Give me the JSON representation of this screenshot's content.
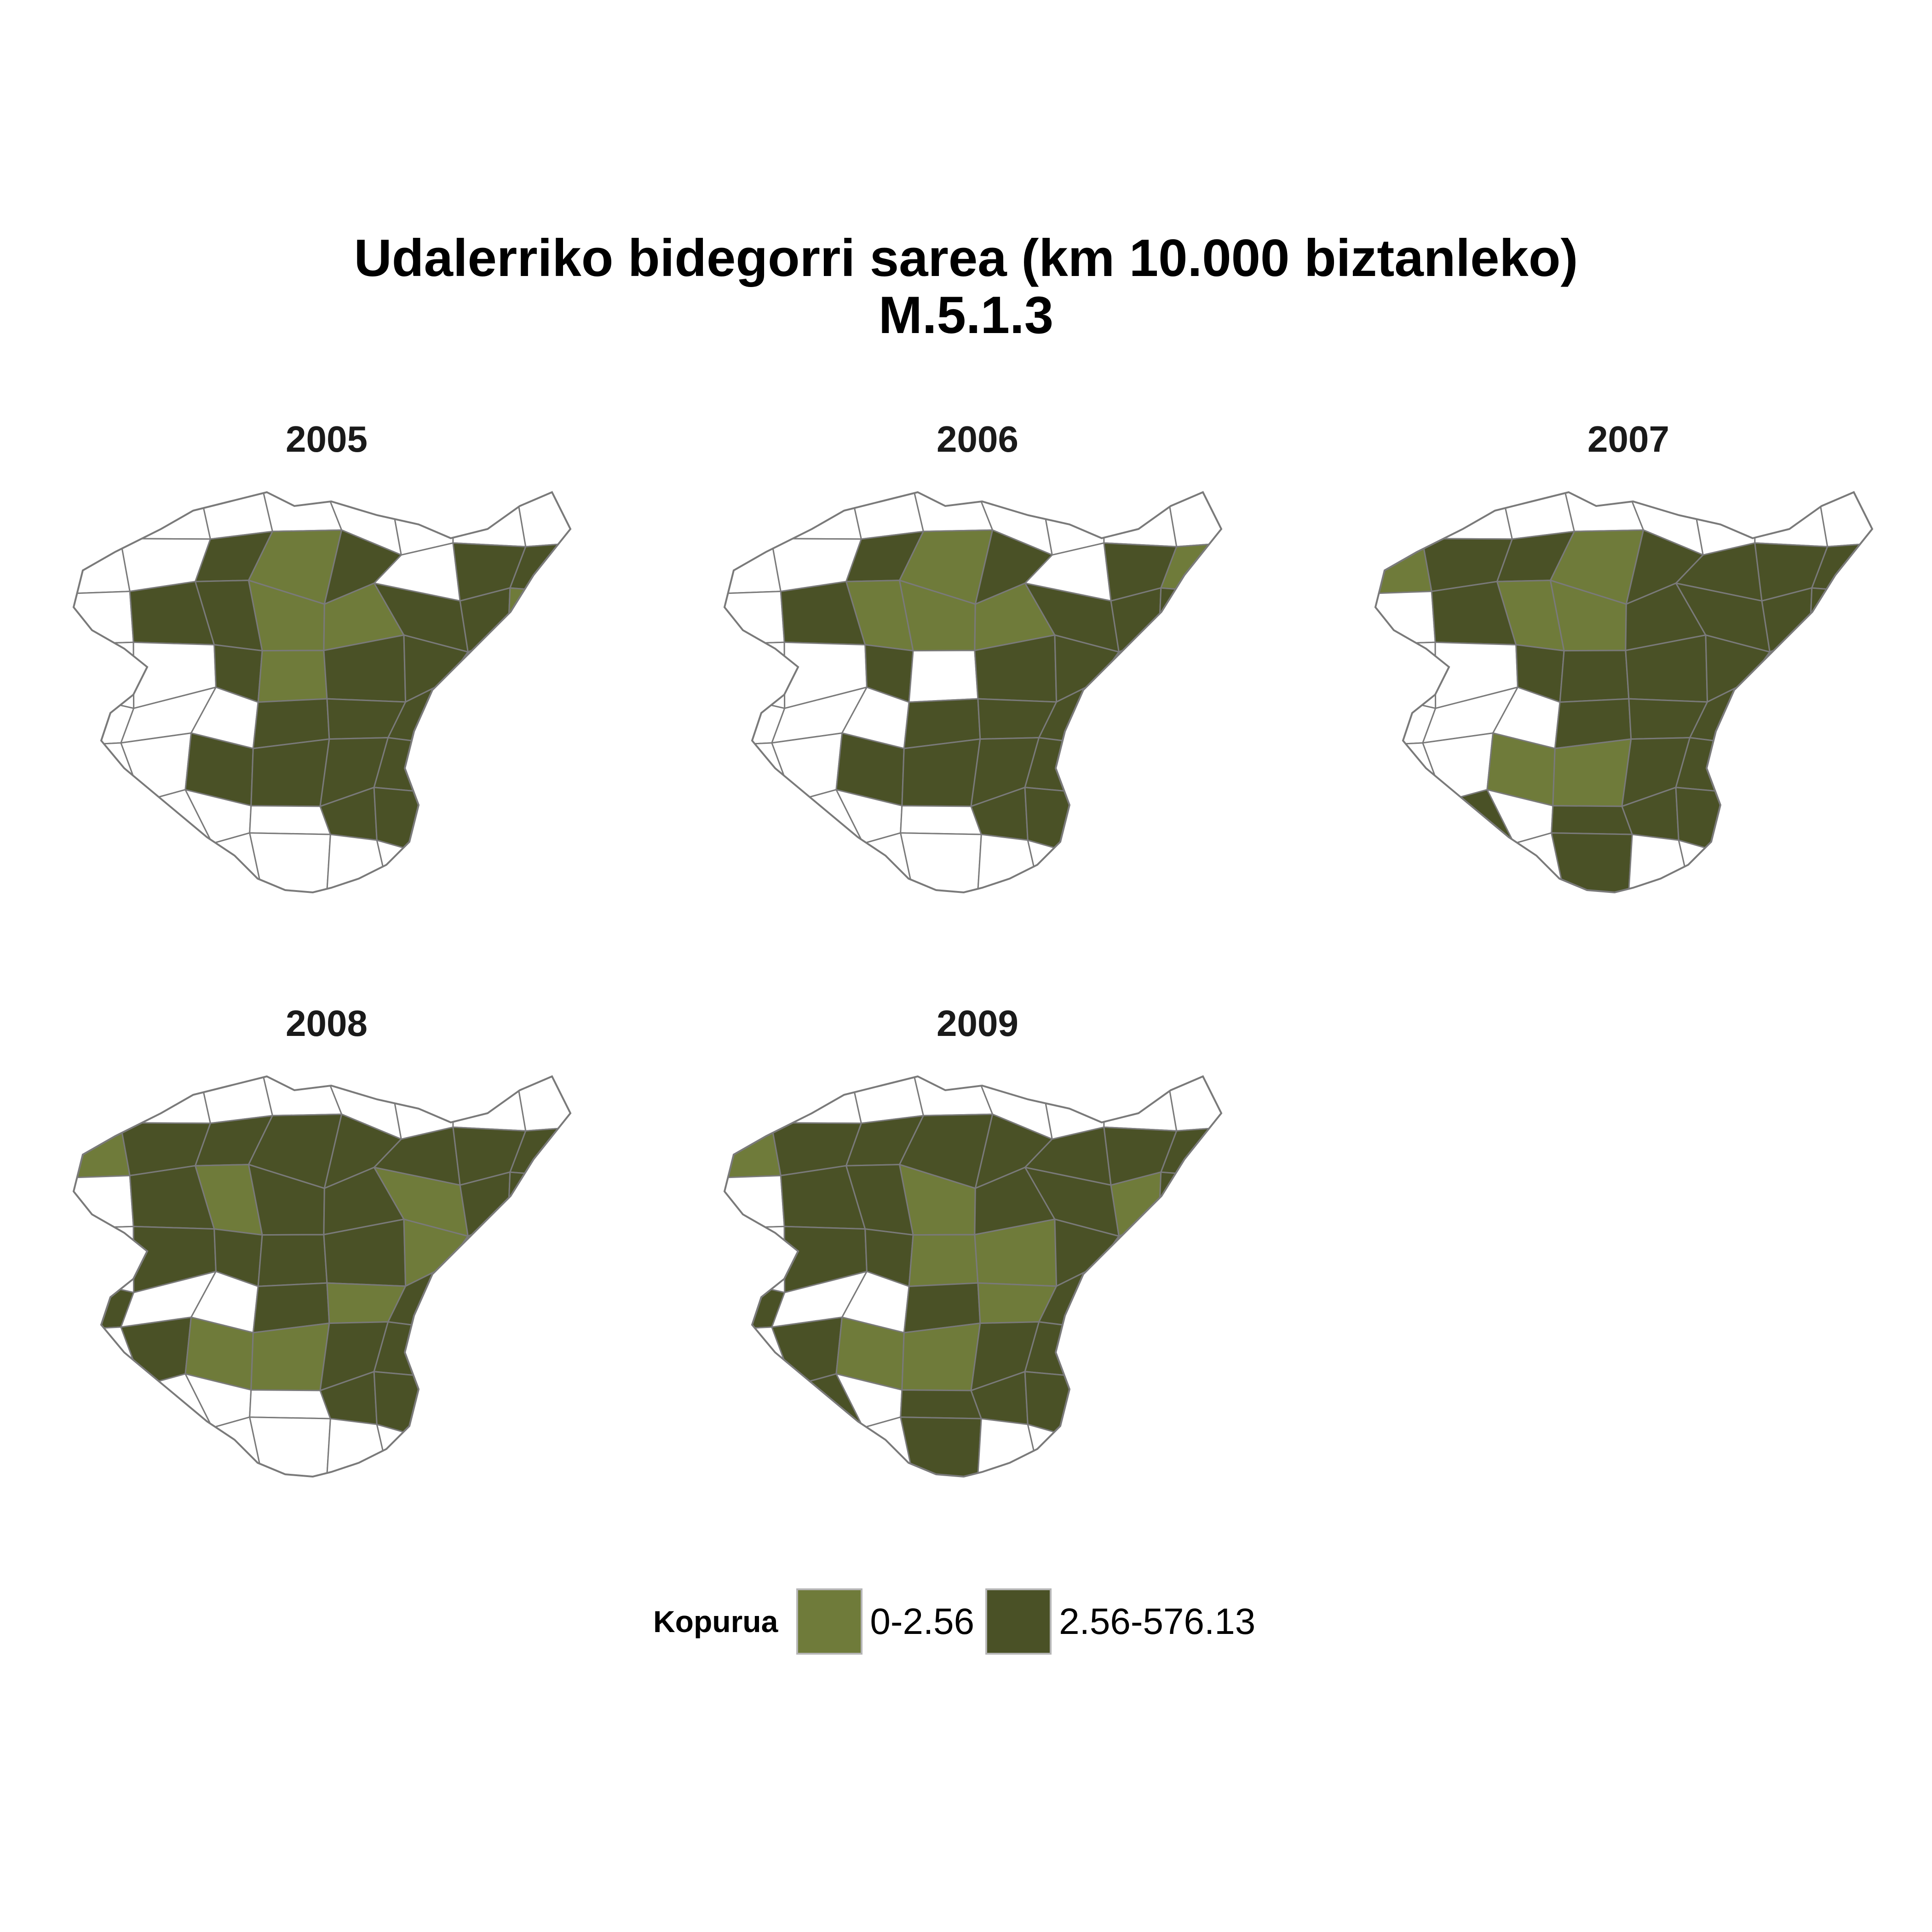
{
  "title": {
    "line1": "Udalerriko bidegorri sarea (km 10.000 biztanleko)",
    "line2": "M.5.1.3"
  },
  "legend": {
    "title": "Kopurua",
    "classes": [
      {
        "label": "0-2.56",
        "color": "#6f7b3a"
      },
      {
        "label": "2.56-576.13",
        "color": "#4a5126"
      }
    ]
  },
  "colors": {
    "empty": "#ffffff",
    "border": "#7a7a7a",
    "low": "#6f7b3a",
    "high": "#4a5126"
  },
  "panels": [
    {
      "year": "2005",
      "regions": [
        "0",
        "0",
        "0",
        "0",
        "0",
        "0",
        "0",
        "0",
        "0",
        "0",
        "2",
        "1",
        "2",
        "0",
        "2",
        "2",
        "0",
        "2",
        "2",
        "1",
        "1",
        "2",
        "2",
        "1",
        "0",
        "0",
        "2",
        "1",
        "2",
        "2",
        "0",
        "0",
        "0",
        "0",
        "0",
        "2",
        "2",
        "2",
        "0",
        "0",
        "0",
        "0",
        "2",
        "2",
        "2",
        "2",
        "0",
        "0",
        "0",
        "0",
        "0",
        "0",
        "2",
        "2",
        "0",
        "0",
        "0",
        "0",
        "0",
        "0",
        "0",
        "0",
        "0",
        "0"
      ]
    },
    {
      "year": "2006",
      "regions": [
        "0",
        "0",
        "0",
        "0",
        "0",
        "0",
        "0",
        "0",
        "0",
        "0",
        "2",
        "1",
        "2",
        "0",
        "2",
        "1",
        "0",
        "2",
        "1",
        "1",
        "1",
        "2",
        "2",
        "2",
        "0",
        "0",
        "2",
        "0",
        "2",
        "2",
        "1",
        "0",
        "0",
        "0",
        "0",
        "2",
        "2",
        "2",
        "0",
        "0",
        "0",
        "0",
        "2",
        "2",
        "2",
        "2",
        "0",
        "0",
        "0",
        "0",
        "0",
        "0",
        "2",
        "2",
        "0",
        "0",
        "0",
        "0",
        "0",
        "0",
        "0",
        "0",
        "0",
        "0"
      ]
    },
    {
      "year": "2007",
      "regions": [
        "0",
        "0",
        "0",
        "0",
        "0",
        "0",
        "0",
        "0",
        "1",
        "2",
        "2",
        "1",
        "2",
        "2",
        "2",
        "2",
        "0",
        "2",
        "1",
        "1",
        "2",
        "2",
        "2",
        "2",
        "0",
        "0",
        "2",
        "2",
        "2",
        "2",
        "1",
        "0",
        "0",
        "0",
        "0",
        "2",
        "2",
        "2",
        "0",
        "0",
        "0",
        "0",
        "1",
        "1",
        "2",
        "2",
        "0",
        "0",
        "0",
        "2",
        "0",
        "2",
        "2",
        "2",
        "0",
        "0",
        "0",
        "0",
        "0",
        "2",
        "0",
        "0",
        "0",
        "0"
      ]
    },
    {
      "year": "2008",
      "regions": [
        "0",
        "0",
        "0",
        "0",
        "0",
        "0",
        "0",
        "0",
        "1",
        "2",
        "2",
        "2",
        "2",
        "2",
        "2",
        "2",
        "0",
        "2",
        "1",
        "2",
        "2",
        "1",
        "2",
        "2",
        "0",
        "2",
        "2",
        "2",
        "2",
        "1",
        "2",
        "0",
        "2",
        "0",
        "0",
        "2",
        "1",
        "2",
        "0",
        "0",
        "0",
        "2",
        "1",
        "1",
        "2",
        "2",
        "0",
        "0",
        "0",
        "0",
        "0",
        "0",
        "2",
        "2",
        "0",
        "0",
        "0",
        "0",
        "0",
        "0",
        "0",
        "0",
        "0",
        "0"
      ]
    },
    {
      "year": "2009",
      "regions": [
        "0",
        "0",
        "0",
        "0",
        "0",
        "0",
        "0",
        "0",
        "1",
        "2",
        "2",
        "2",
        "2",
        "2",
        "2",
        "2",
        "0",
        "2",
        "2",
        "1",
        "2",
        "2",
        "1",
        "2",
        "0",
        "2",
        "2",
        "1",
        "1",
        "2",
        "2",
        "0",
        "2",
        "0",
        "0",
        "2",
        "1",
        "2",
        "0",
        "0",
        "0",
        "2",
        "1",
        "1",
        "2",
        "2",
        "0",
        "0",
        "0",
        "2",
        "0",
        "2",
        "2",
        "2",
        "0",
        "0",
        "0",
        "0",
        "0",
        "2",
        "0",
        "0",
        "0",
        "0"
      ]
    }
  ]
}
